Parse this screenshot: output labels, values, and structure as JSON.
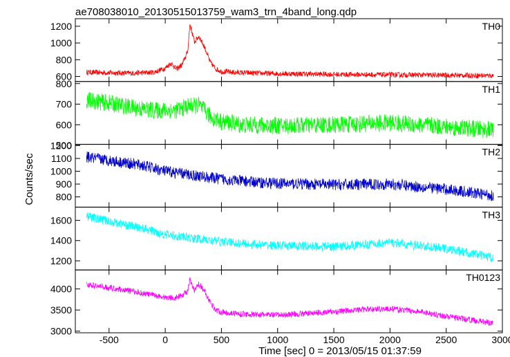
{
  "chart_data": {
    "type": "line",
    "title": "ae708038010_20130515013759_wam3_trn_4band_long.qdp",
    "xlabel": "Time [sec] 0 = 2013/05/15 01:37:59",
    "ylabel": "Counts/sec",
    "xlim": [
      -800,
      3000
    ],
    "x_ticks": [
      -500,
      0,
      500,
      1000,
      1500,
      2000,
      2500,
      3000
    ],
    "grid": false,
    "panels": [
      {
        "name": "TH0",
        "color": "#ff0000",
        "ylim": [
          540,
          1290
        ],
        "y_ticks": [
          600,
          800,
          1000,
          1200
        ],
        "x": [
          -700,
          -500,
          -300,
          -100,
          0,
          50,
          100,
          150,
          200,
          220,
          260,
          300,
          350,
          400,
          450,
          500,
          600,
          800,
          1000,
          1500,
          2000,
          2500,
          2920
        ],
        "y": [
          650,
          645,
          640,
          650,
          700,
          760,
          690,
          740,
          900,
          1230,
          1010,
          1080,
          950,
          770,
          690,
          660,
          650,
          640,
          635,
          625,
          620,
          615,
          610
        ],
        "noise": 32
      },
      {
        "name": "TH1",
        "color": "#00ff00",
        "ylim": [
          505,
          810
        ],
        "y_ticks": [
          500,
          600,
          700,
          800
        ],
        "x": [
          -700,
          -500,
          -300,
          -100,
          100,
          200,
          300,
          400,
          500,
          700,
          1000,
          1500,
          2000,
          2500,
          2920
        ],
        "y": [
          720,
          705,
          685,
          670,
          670,
          690,
          695,
          640,
          615,
          600,
          595,
          600,
          610,
          590,
          575
        ],
        "noise": 42
      },
      {
        "name": "TH2",
        "color": "#0000cc",
        "ylim": [
          720,
          1210
        ],
        "y_ticks": [
          800,
          900,
          1000,
          1100,
          1200
        ],
        "x": [
          -700,
          -500,
          -200,
          0,
          200,
          400,
          600,
          800,
          1000,
          1500,
          2000,
          2500,
          2920
        ],
        "y": [
          1110,
          1085,
          1045,
          1000,
          975,
          950,
          930,
          915,
          905,
          895,
          900,
          860,
          810
        ],
        "noise": 45
      },
      {
        "name": "TH3",
        "color": "#00ffff",
        "ylim": [
          1110,
          1730
        ],
        "y_ticks": [
          1200,
          1400,
          1600
        ],
        "x": [
          -700,
          -500,
          -200,
          0,
          200,
          400,
          600,
          800,
          1000,
          1500,
          2000,
          2500,
          2920
        ],
        "y": [
          1640,
          1590,
          1520,
          1460,
          1430,
          1400,
          1380,
          1360,
          1350,
          1340,
          1380,
          1320,
          1230
        ],
        "noise": 45
      },
      {
        "name": "TH0123",
        "color": "#ff00ff",
        "ylim": [
          2960,
          4450
        ],
        "y_ticks": [
          3000,
          3500,
          4000
        ],
        "x": [
          -700,
          -500,
          -300,
          -100,
          0,
          100,
          150,
          200,
          220,
          260,
          300,
          350,
          400,
          450,
          500,
          700,
          1000,
          1500,
          1800,
          2000,
          2300,
          2500,
          2920
        ],
        "y": [
          4100,
          4030,
          3950,
          3850,
          3800,
          3790,
          3850,
          3950,
          4210,
          3950,
          4120,
          3950,
          3680,
          3500,
          3450,
          3400,
          3380,
          3460,
          3520,
          3530,
          3450,
          3350,
          3190
        ],
        "noise": 70
      }
    ]
  }
}
